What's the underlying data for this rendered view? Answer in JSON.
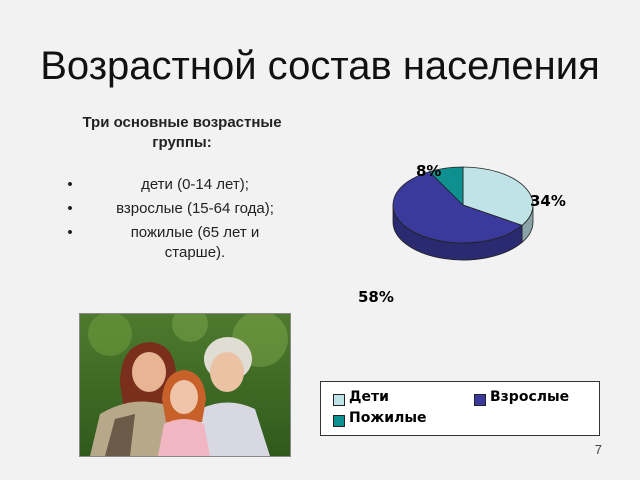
{
  "slide": {
    "title": "Возрастной состав населения",
    "subtitle_line1": "Три основные возрастные",
    "subtitle_line2": "группы:",
    "bullets": [
      {
        "line1": "дети (0-14 лет);",
        "line2": ""
      },
      {
        "line1": "взрослые (15-64 года);",
        "line2": ""
      },
      {
        "line1": "пожилые (65 лет и",
        "line2": "старше)."
      }
    ],
    "bullet_glyph": "•",
    "page_number": "7"
  },
  "colors": {
    "children": "#bfe3e6",
    "adults": "#3a3a9c",
    "elderly": "#0f9090"
  },
  "chart_data": {
    "type": "pie",
    "slices": [
      {
        "name": "Дети",
        "value": 34,
        "label": "34%",
        "color": "#bfe3e6"
      },
      {
        "name": "Взрослые",
        "value": 58,
        "label": "58%",
        "color": "#3a3a9c"
      },
      {
        "name": "Пожилые",
        "value": 8,
        "label": "8%",
        "color": "#0f9090"
      }
    ],
    "legend": [
      "Дети",
      "Взрослые",
      "Пожилые"
    ],
    "legend_placement": "bottom-right",
    "style": "3d"
  }
}
